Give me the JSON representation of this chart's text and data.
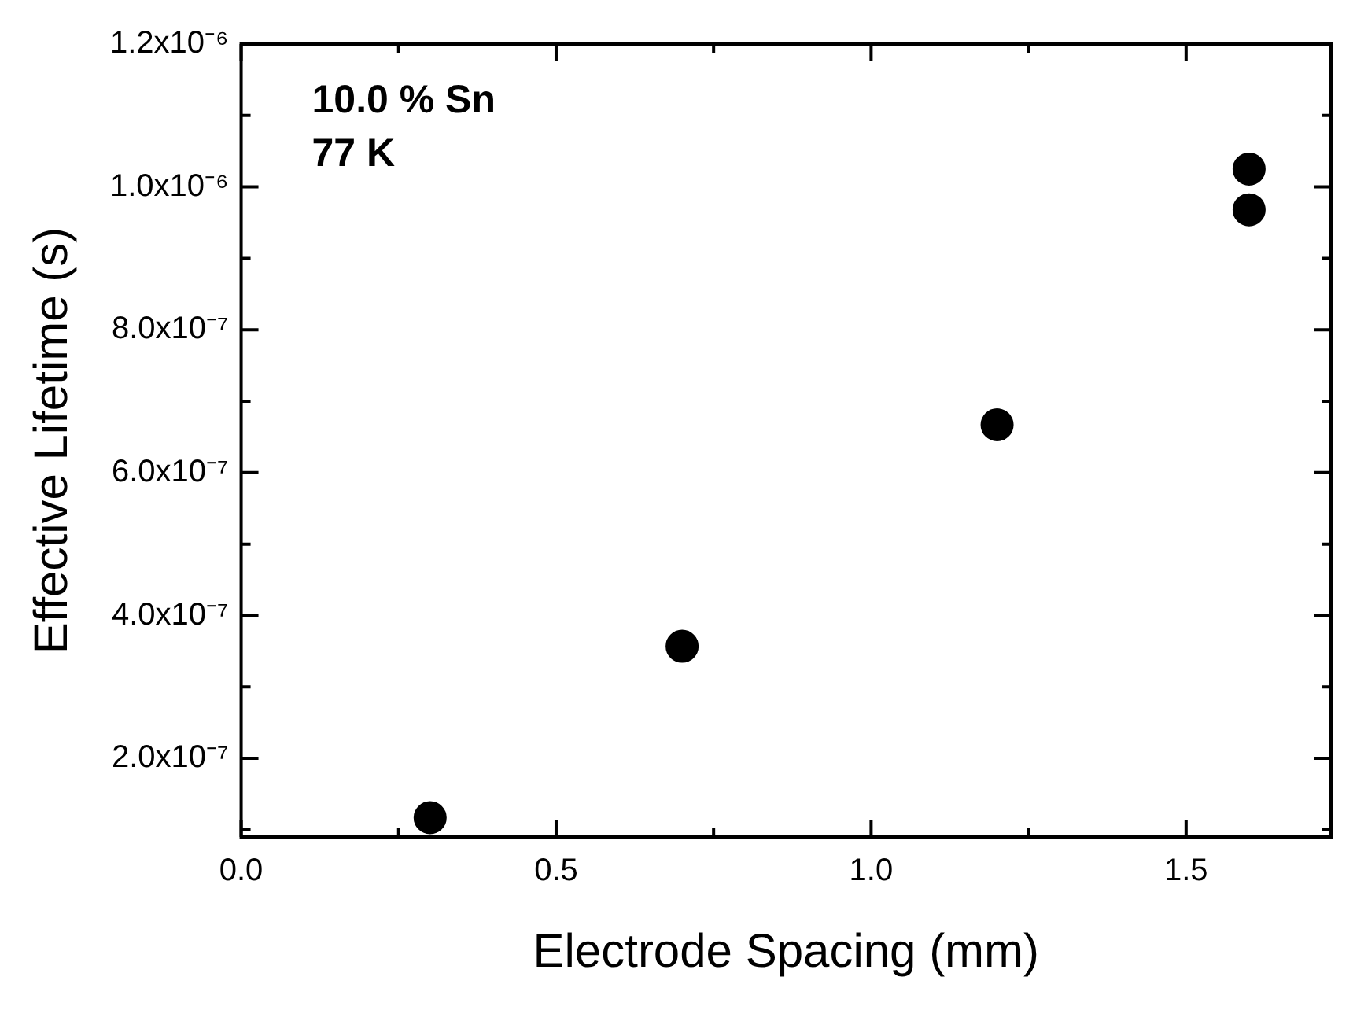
{
  "chart_data": {
    "type": "scatter",
    "xlabel": "Electrode Spacing (mm)",
    "ylabel": "Effective Lifetime (s)",
    "annotations": [
      "10.0 % Sn",
      "77 K"
    ],
    "x": [
      0.3,
      0.7,
      1.2,
      1.6,
      1.6
    ],
    "series": [
      {
        "color": "#000000",
        "values": [
          1.17e-07,
          3.57e-07,
          6.67e-07,
          1.025e-06,
          9.68e-07
        ]
      }
    ],
    "xlim": [
      0,
      1.73
    ],
    "xticks": [
      {
        "value": 0,
        "label": "0.0"
      },
      0.5,
      {
        "value": 1,
        "label": "1.0"
      },
      1.5
    ],
    "ylim": [
      9e-08,
      1.2e-06
    ],
    "yticks": [
      {
        "value": 2e-07,
        "label": "2.0x10⁻⁷"
      },
      {
        "value": 4e-07,
        "label": "4.0x10⁻⁷"
      },
      {
        "value": 6e-07,
        "label": "6.0x10⁻⁷"
      },
      {
        "value": 8e-07,
        "label": "8.0x10⁻⁷"
      },
      {
        "value": 1e-06,
        "label": "1.0x10⁻⁶"
      },
      {
        "value": 1.2e-06,
        "label": "1.2x10⁻⁶"
      }
    ],
    "marker": "circle",
    "legend": false
  }
}
